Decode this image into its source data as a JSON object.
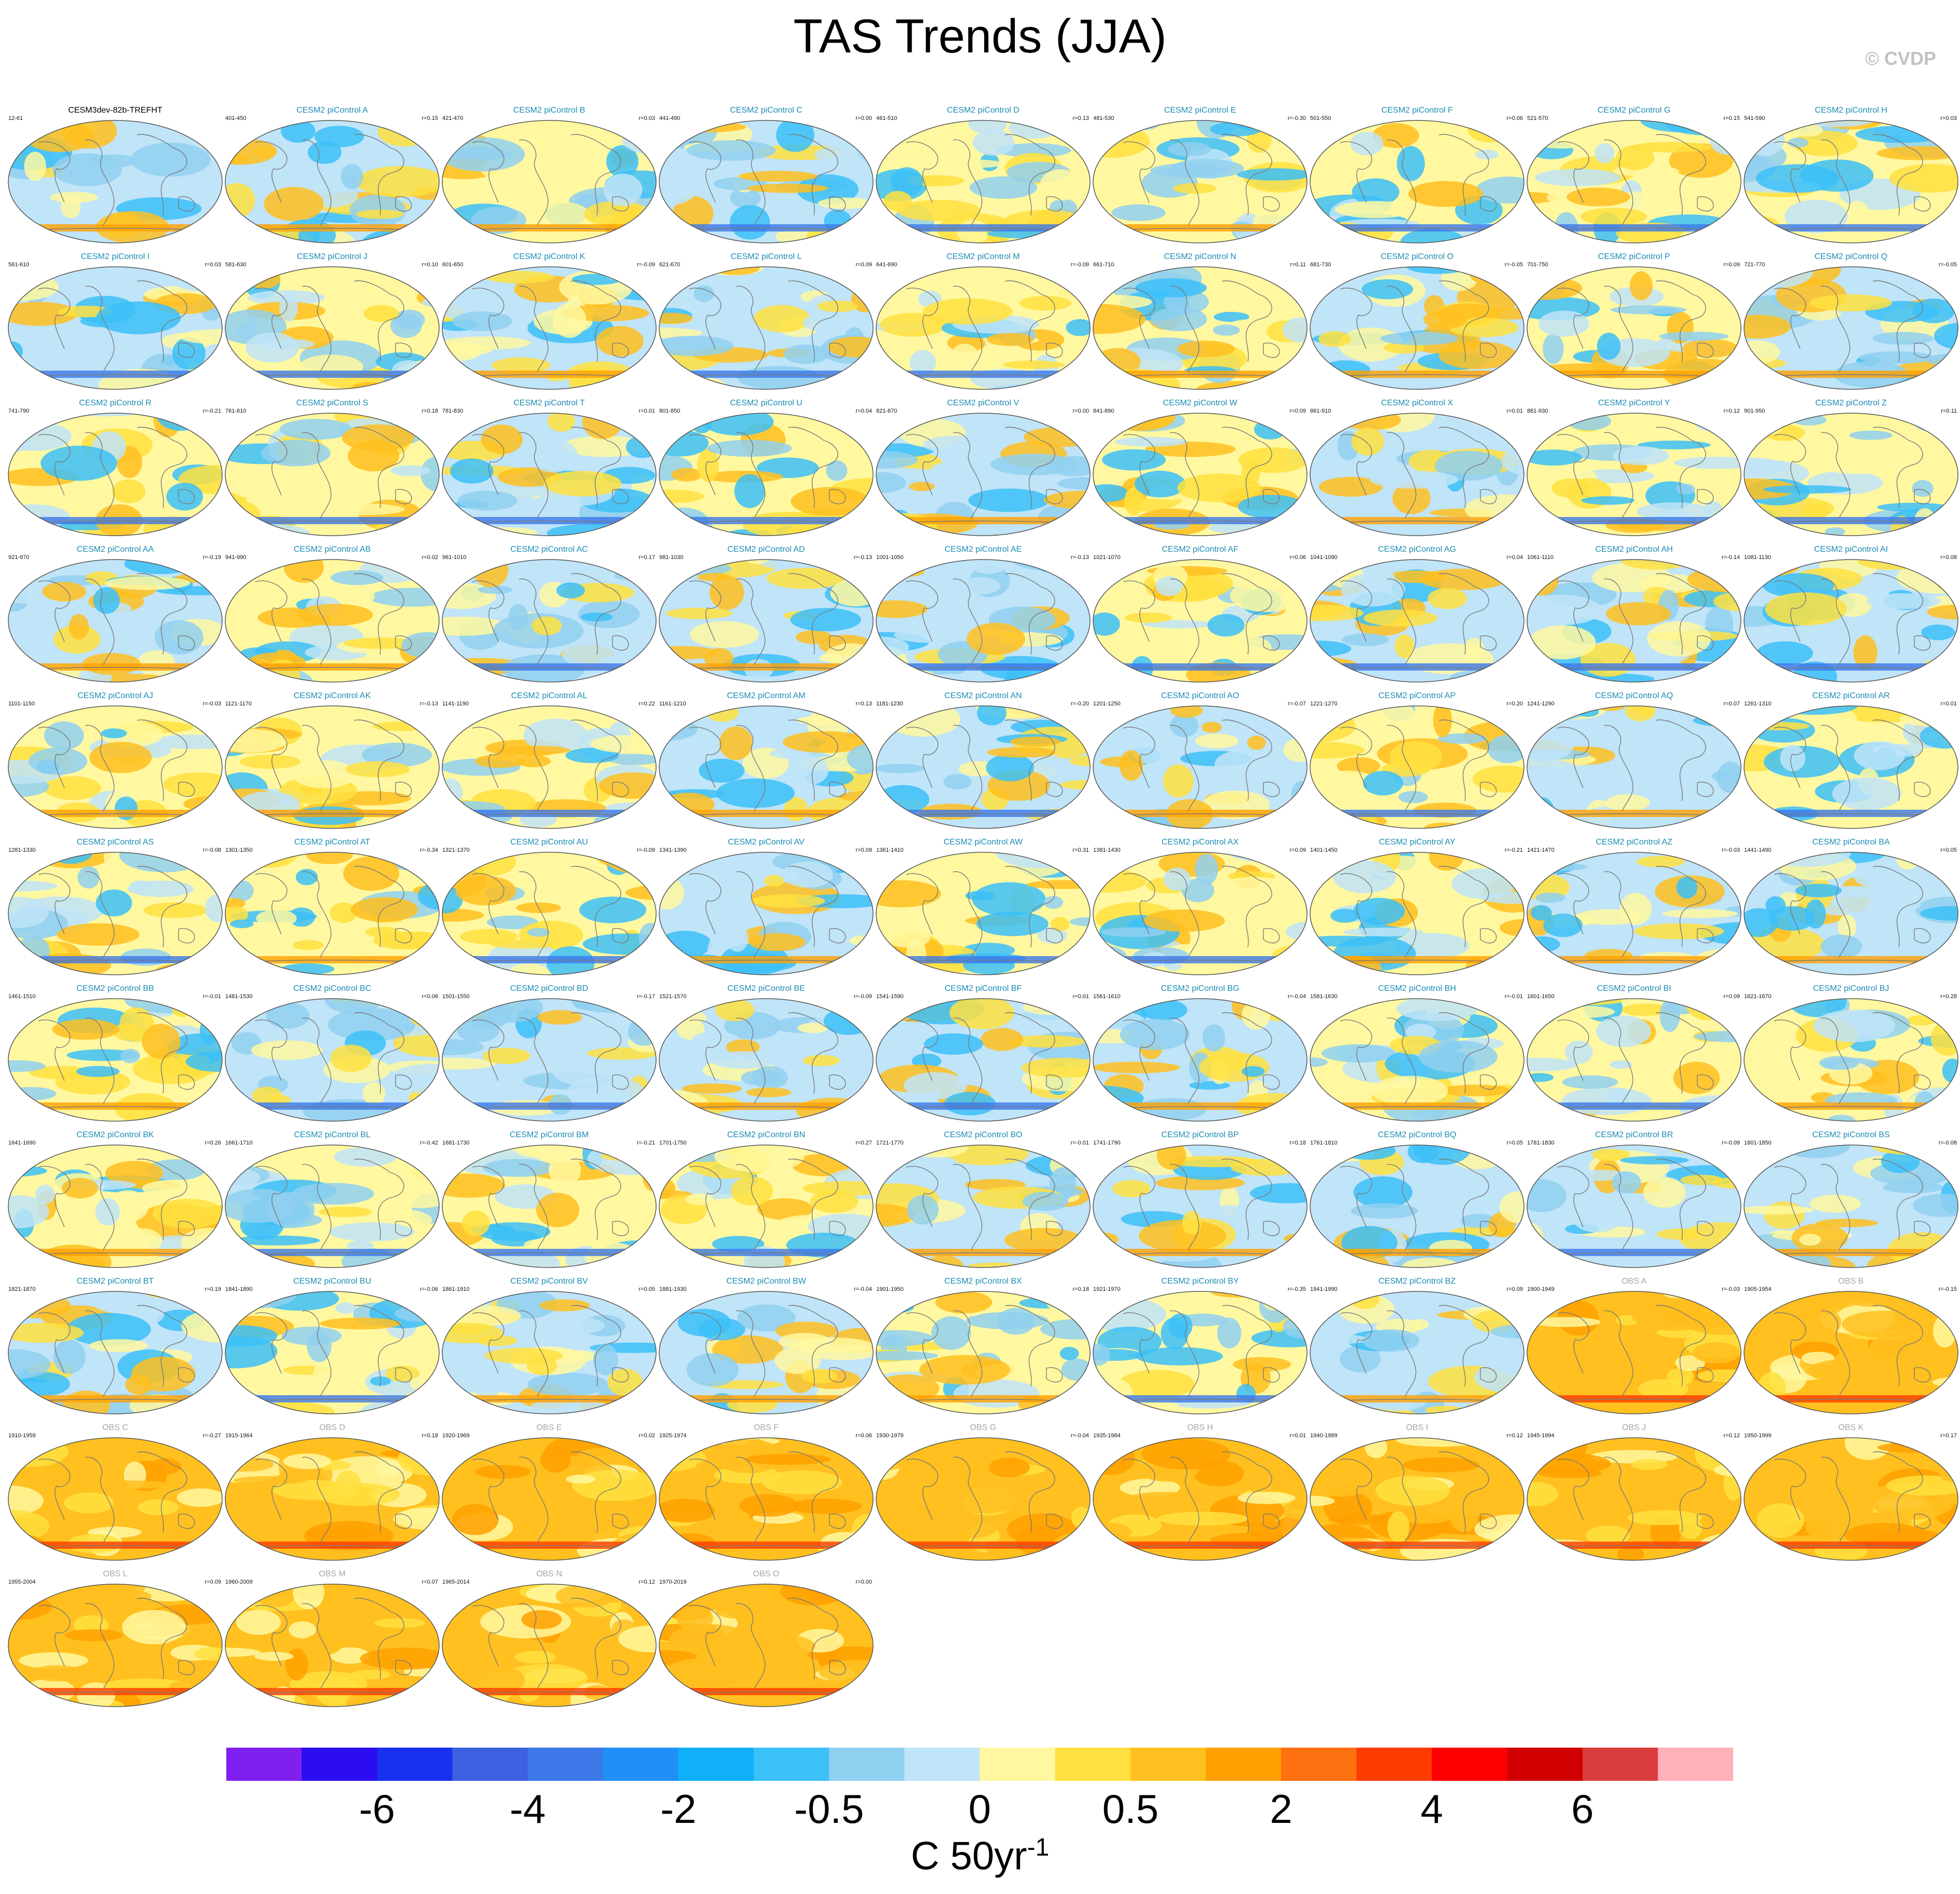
{
  "title": "TAS Trends (JJA)",
  "copyright": "© CVDP",
  "colors": {
    "model_title": "#1a8cb4",
    "reference_title": "#000000",
    "obs_title": "#a6a6a6"
  },
  "chart_data": {
    "type": "heatmap",
    "variable": "TAS",
    "season": "JJA",
    "map_projection": "global",
    "panels": [
      {
        "title": "CESM3dev-82b-TREFHT",
        "years": "12-61",
        "r": "",
        "kind": "reference"
      },
      {
        "title": "CESM2 piControl A",
        "years": "401-450",
        "r": "r=0.15",
        "kind": "model"
      },
      {
        "title": "CESM2 piControl B",
        "years": "421-470",
        "r": "r=0.03",
        "kind": "model"
      },
      {
        "title": "CESM2 piControl C",
        "years": "441-490",
        "r": "r=0.00",
        "kind": "model"
      },
      {
        "title": "CESM2 piControl D",
        "years": "461-510",
        "r": "r=0.13",
        "kind": "model"
      },
      {
        "title": "CESM2 piControl E",
        "years": "481-530",
        "r": "r=-0.30",
        "kind": "model"
      },
      {
        "title": "CESM2 piControl F",
        "years": "501-550",
        "r": "r=0.06",
        "kind": "model"
      },
      {
        "title": "CESM2 piControl G",
        "years": "521-570",
        "r": "r=0.15",
        "kind": "model"
      },
      {
        "title": "CESM2 piControl H",
        "years": "541-590",
        "r": "r=0.03",
        "kind": "model"
      },
      {
        "title": "CESM2 piControl I",
        "years": "561-610",
        "r": "r=0.03",
        "kind": "model"
      },
      {
        "title": "CESM2 piControl J",
        "years": "581-630",
        "r": "r=0.10",
        "kind": "model"
      },
      {
        "title": "CESM2 piControl K",
        "years": "601-650",
        "r": "r=-0.09",
        "kind": "model"
      },
      {
        "title": "CESM2 piControl L",
        "years": "621-670",
        "r": "r=0.09",
        "kind": "model"
      },
      {
        "title": "CESM2 piControl M",
        "years": "641-690",
        "r": "r=-0.09",
        "kind": "model"
      },
      {
        "title": "CESM2 piControl N",
        "years": "661-710",
        "r": "r=0.11",
        "kind": "model"
      },
      {
        "title": "CESM2 piControl O",
        "years": "681-730",
        "r": "r=-0.05",
        "kind": "model"
      },
      {
        "title": "CESM2 piControl P",
        "years": "701-750",
        "r": "r=0.09",
        "kind": "model"
      },
      {
        "title": "CESM2 piControl Q",
        "years": "721-770",
        "r": "r=-0.05",
        "kind": "model"
      },
      {
        "title": "CESM2 piControl R",
        "years": "741-790",
        "r": "r=-0.21",
        "kind": "model"
      },
      {
        "title": "CESM2 piControl S",
        "years": "761-810",
        "r": "r=0.18",
        "kind": "model"
      },
      {
        "title": "CESM2 piControl T",
        "years": "781-830",
        "r": "r=0.01",
        "kind": "model"
      },
      {
        "title": "CESM2 piControl U",
        "years": "801-850",
        "r": "r=0.04",
        "kind": "model"
      },
      {
        "title": "CESM2 piControl V",
        "years": "821-870",
        "r": "r=0.00",
        "kind": "model"
      },
      {
        "title": "CESM2 piControl W",
        "years": "841-890",
        "r": "r=0.09",
        "kind": "model"
      },
      {
        "title": "CESM2 piControl X",
        "years": "861-910",
        "r": "r=0.01",
        "kind": "model"
      },
      {
        "title": "CESM2 piControl Y",
        "years": "881-930",
        "r": "r=0.12",
        "kind": "model"
      },
      {
        "title": "CESM2 piControl Z",
        "years": "901-950",
        "r": "r=0.11",
        "kind": "model"
      },
      {
        "title": "CESM2 piControl AA",
        "years": "921-970",
        "r": "r=-0.19",
        "kind": "model"
      },
      {
        "title": "CESM2 piControl AB",
        "years": "941-990",
        "r": "r=0.02",
        "kind": "model"
      },
      {
        "title": "CESM2 piControl AC",
        "years": "961-1010",
        "r": "r=0.17",
        "kind": "model"
      },
      {
        "title": "CESM2 piControl AD",
        "years": "981-1030",
        "r": "r=-0.13",
        "kind": "model"
      },
      {
        "title": "CESM2 piControl AE",
        "years": "1001-1050",
        "r": "r=-0.13",
        "kind": "model"
      },
      {
        "title": "CESM2 piControl AF",
        "years": "1021-1070",
        "r": "r=0.06",
        "kind": "model"
      },
      {
        "title": "CESM2 piControl AG",
        "years": "1041-1090",
        "r": "r=0.04",
        "kind": "model"
      },
      {
        "title": "CESM2 piControl AH",
        "years": "1061-1110",
        "r": "r=-0.14",
        "kind": "model"
      },
      {
        "title": "CESM2 piControl AI",
        "years": "1081-1130",
        "r": "r=0.08",
        "kind": "model"
      },
      {
        "title": "CESM2 piControl AJ",
        "years": "1101-1150",
        "r": "r=-0.03",
        "kind": "model"
      },
      {
        "title": "CESM2 piControl AK",
        "years": "1121-1170",
        "r": "r=-0.13",
        "kind": "model"
      },
      {
        "title": "CESM2 piControl AL",
        "years": "1141-1190",
        "r": "r=0.22",
        "kind": "model"
      },
      {
        "title": "CESM2 piControl AM",
        "years": "1161-1210",
        "r": "r=0.13",
        "kind": "model"
      },
      {
        "title": "CESM2 piControl AN",
        "years": "1181-1230",
        "r": "r=-0.20",
        "kind": "model"
      },
      {
        "title": "CESM2 piControl AO",
        "years": "1201-1250",
        "r": "r=-0.07",
        "kind": "model"
      },
      {
        "title": "CESM2 piControl AP",
        "years": "1221-1270",
        "r": "r=0.20",
        "kind": "model"
      },
      {
        "title": "CESM2 piControl AQ",
        "years": "1241-1290",
        "r": "r=0.07",
        "kind": "model"
      },
      {
        "title": "CESM2 piControl AR",
        "years": "1261-1310",
        "r": "r=0.01",
        "kind": "model"
      },
      {
        "title": "CESM2 piControl AS",
        "years": "1281-1330",
        "r": "r=-0.08",
        "kind": "model"
      },
      {
        "title": "CESM2 piControl AT",
        "years": "1301-1350",
        "r": "r=-0.34",
        "kind": "model"
      },
      {
        "title": "CESM2 piControl AU",
        "years": "1321-1370",
        "r": "r=-0.09",
        "kind": "model"
      },
      {
        "title": "CESM2 piControl AV",
        "years": "1341-1390",
        "r": "r=0.09",
        "kind": "model"
      },
      {
        "title": "CESM2 piControl AW",
        "years": "1361-1410",
        "r": "r=0.31",
        "kind": "model"
      },
      {
        "title": "CESM2 piControl AX",
        "years": "1381-1430",
        "r": "r=0.09",
        "kind": "model"
      },
      {
        "title": "CESM2 piControl AY",
        "years": "1401-1450",
        "r": "r=-0.21",
        "kind": "model"
      },
      {
        "title": "CESM2 piControl AZ",
        "years": "1421-1470",
        "r": "r=-0.03",
        "kind": "model"
      },
      {
        "title": "CESM2 piControl BA",
        "years": "1441-1490",
        "r": "r=0.05",
        "kind": "model"
      },
      {
        "title": "CESM2 piControl BB",
        "years": "1461-1510",
        "r": "r=-0.01",
        "kind": "model"
      },
      {
        "title": "CESM2 piControl BC",
        "years": "1481-1530",
        "r": "r=0.06",
        "kind": "model"
      },
      {
        "title": "CESM2 piControl BD",
        "years": "1501-1550",
        "r": "r=-0.17",
        "kind": "model"
      },
      {
        "title": "CESM2 piControl BE",
        "years": "1521-1570",
        "r": "r=-0.09",
        "kind": "model"
      },
      {
        "title": "CESM2 piControl BF",
        "years": "1541-1590",
        "r": "r=0.01",
        "kind": "model"
      },
      {
        "title": "CESM2 piControl BG",
        "years": "1561-1610",
        "r": "r=-0.04",
        "kind": "model"
      },
      {
        "title": "CESM2 piControl BH",
        "years": "1581-1630",
        "r": "r=-0.01",
        "kind": "model"
      },
      {
        "title": "CESM2 piControl BI",
        "years": "1601-1650",
        "r": "r=0.09",
        "kind": "model"
      },
      {
        "title": "CESM2 piControl BJ",
        "years": "1621-1670",
        "r": "r=0.28",
        "kind": "model"
      },
      {
        "title": "CESM2 piControl BK",
        "years": "1641-1690",
        "r": "r=0.26",
        "kind": "model"
      },
      {
        "title": "CESM2 piControl BL",
        "years": "1661-1710",
        "r": "r=-0.42",
        "kind": "model"
      },
      {
        "title": "CESM2 piControl BM",
        "years": "1681-1730",
        "r": "r=-0.21",
        "kind": "model"
      },
      {
        "title": "CESM2 piControl BN",
        "years": "1701-1750",
        "r": "r=0.27",
        "kind": "model"
      },
      {
        "title": "CESM2 piControl BO",
        "years": "1721-1770",
        "r": "r=-0.01",
        "kind": "model"
      },
      {
        "title": "CESM2 piControl BP",
        "years": "1741-1790",
        "r": "r=0.18",
        "kind": "model"
      },
      {
        "title": "CESM2 piControl BQ",
        "years": "1761-1810",
        "r": "r=0.05",
        "kind": "model"
      },
      {
        "title": "CESM2 piControl BR",
        "years": "1781-1830",
        "r": "r=-0.09",
        "kind": "model"
      },
      {
        "title": "CESM2 piControl BS",
        "years": "1801-1850",
        "r": "r=-0.08",
        "kind": "model"
      },
      {
        "title": "CESM2 piControl BT",
        "years": "1821-1870",
        "r": "r=0.19",
        "kind": "model"
      },
      {
        "title": "CESM2 piControl BU",
        "years": "1841-1890",
        "r": "r=-0.06",
        "kind": "model"
      },
      {
        "title": "CESM2 piControl BV",
        "years": "1861-1910",
        "r": "r=0.05",
        "kind": "model"
      },
      {
        "title": "CESM2 piControl BW",
        "years": "1881-1930",
        "r": "r=-0.04",
        "kind": "model"
      },
      {
        "title": "CESM2 piControl BX",
        "years": "1901-1950",
        "r": "r=0.18",
        "kind": "model"
      },
      {
        "title": "CESM2 piControl BY",
        "years": "1921-1970",
        "r": "r=-0.35",
        "kind": "model"
      },
      {
        "title": "CESM2 piControl BZ",
        "years": "1941-1990",
        "r": "r=0.09",
        "kind": "model"
      },
      {
        "title": "OBS A",
        "years": "1900-1949",
        "r": "r=-0.03",
        "kind": "obs"
      },
      {
        "title": "OBS B",
        "years": "1905-1954",
        "r": "r=-0.15",
        "kind": "obs"
      },
      {
        "title": "OBS C",
        "years": "1910-1959",
        "r": "r=-0.27",
        "kind": "obs"
      },
      {
        "title": "OBS D",
        "years": "1915-1964",
        "r": "r=0.18",
        "kind": "obs"
      },
      {
        "title": "OBS E",
        "years": "1920-1969",
        "r": "r=0.02",
        "kind": "obs"
      },
      {
        "title": "OBS F",
        "years": "1925-1974",
        "r": "r=0.06",
        "kind": "obs"
      },
      {
        "title": "OBS G",
        "years": "1930-1979",
        "r": "r=-0.04",
        "kind": "obs"
      },
      {
        "title": "OBS H",
        "years": "1935-1984",
        "r": "r=0.01",
        "kind": "obs"
      },
      {
        "title": "OBS I",
        "years": "1940-1989",
        "r": "r=0.12",
        "kind": "obs"
      },
      {
        "title": "OBS J",
        "years": "1945-1994",
        "r": "r=0.12",
        "kind": "obs"
      },
      {
        "title": "OBS K",
        "years": "1950-1999",
        "r": "r=0.17",
        "kind": "obs"
      },
      {
        "title": "OBS L",
        "years": "1955-2004",
        "r": "r=0.09",
        "kind": "obs"
      },
      {
        "title": "OBS M",
        "years": "1960-2009",
        "r": "r=0.07",
        "kind": "obs"
      },
      {
        "title": "OBS N",
        "years": "1965-2014",
        "r": "r=0.12",
        "kind": "obs"
      },
      {
        "title": "OBS O",
        "years": "1970-2019",
        "r": "r=0.00",
        "kind": "obs"
      }
    ],
    "colorbar": {
      "colors": [
        "#8020f0",
        "#2c0cf0",
        "#1830f0",
        "#3c60e0",
        "#3c78e8",
        "#2090f8",
        "#10b0f8",
        "#3cc0f8",
        "#90d0f0",
        "#c0e4f8",
        "#fff8a0",
        "#ffe040",
        "#ffc020",
        "#ffa000",
        "#ff7010",
        "#ff3c00",
        "#ff0000",
        "#d00000",
        "#d83c3c",
        "#ffb0b8"
      ],
      "tick_labels": [
        "-6",
        "-4",
        "-2",
        "-0.5",
        "0",
        "0.5",
        "2",
        "4",
        "6"
      ],
      "units": "C 50yr",
      "units_exponent": "-1"
    }
  }
}
